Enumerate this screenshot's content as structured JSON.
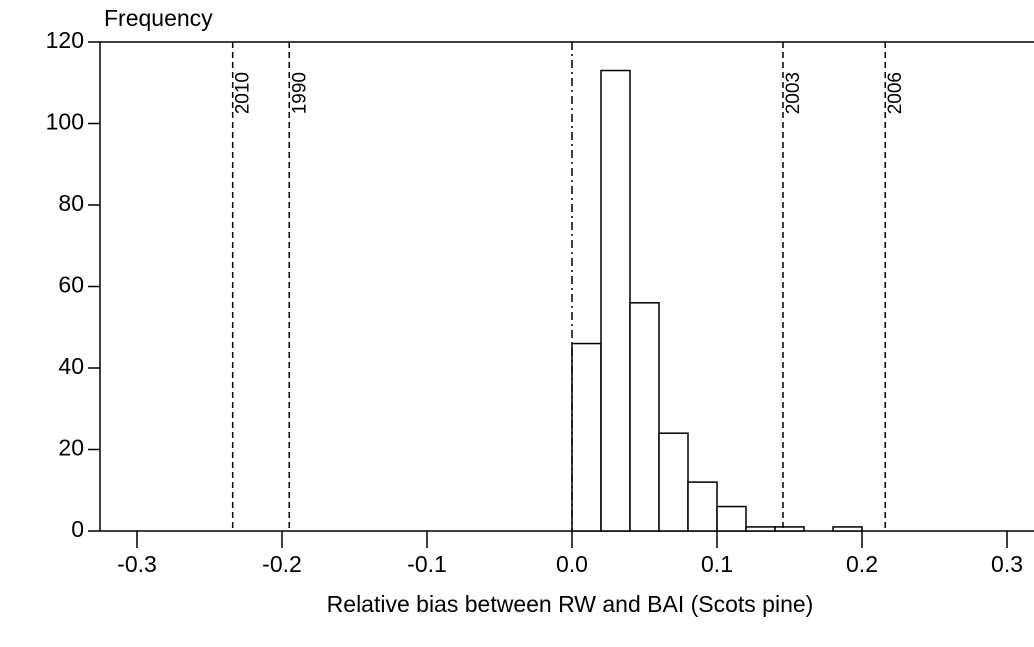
{
  "chart_data": {
    "type": "histogram",
    "ylabel": "Frequency",
    "xlabel": "Relative bias between RW and BAI (Scots pine)",
    "bins": [
      0.0,
      0.02,
      0.04,
      0.06,
      0.08,
      0.1,
      0.12,
      0.14,
      0.16,
      0.18,
      0.2
    ],
    "values": [
      46,
      113,
      56,
      24,
      12,
      6,
      1,
      1,
      0,
      1
    ],
    "color": "#ffffff",
    "xlim": [
      -0.3255,
      0.3186
    ],
    "xticks": [
      -0.3,
      -0.2,
      -0.1,
      {
        "value": 0,
        "label": "0.0"
      },
      0.1,
      0.2,
      0.3
    ],
    "ylim": [
      0,
      120
    ],
    "yticks": [
      0,
      20,
      40,
      60,
      80,
      100,
      120
    ],
    "reference_line": 0,
    "vlines": [
      {
        "x": -0.234,
        "label": "2010"
      },
      {
        "x": -0.195,
        "label": "1990"
      },
      {
        "x": 0.1455,
        "label": "2003"
      },
      {
        "x": 0.216,
        "label": "2006"
      }
    ]
  }
}
